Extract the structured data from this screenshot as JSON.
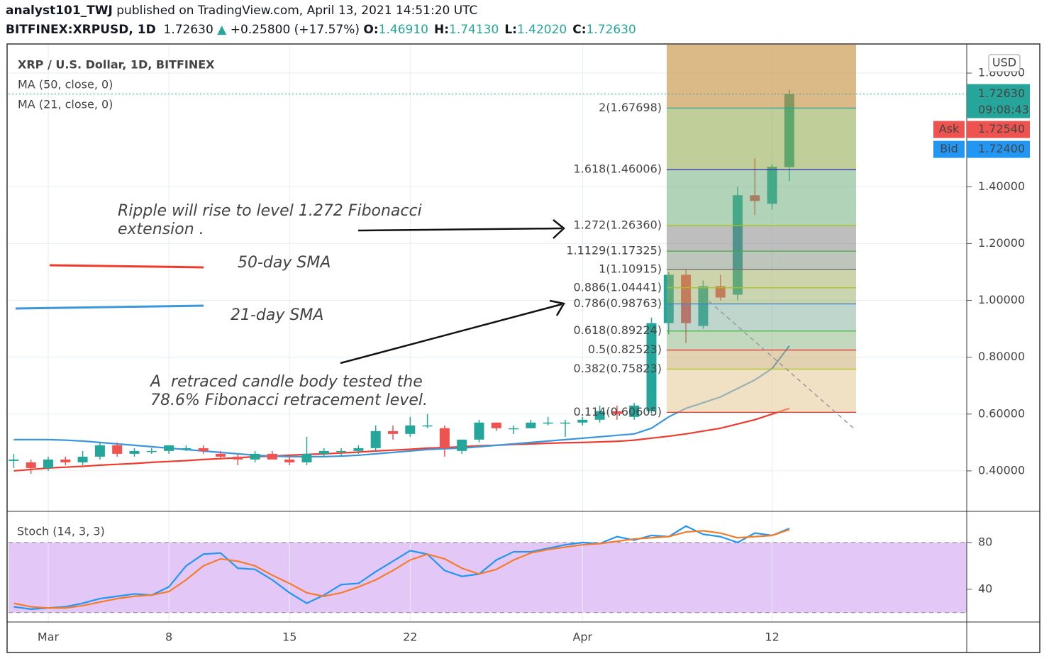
{
  "header": {
    "author": "analyst101_TWJ",
    "published": "published on TradingView.com, April 13, 2021 14:51:20 UTC",
    "symbol": "BITFINEX:XRPUSD, 1D",
    "price": "1.72630",
    "arrow": "▲",
    "change": "+0.25800 (+17.57%)",
    "ohlc": [
      {
        "key": "O:",
        "value": "1.46910"
      },
      {
        "key": "H:",
        "value": "1.74130"
      },
      {
        "key": "L:",
        "value": "1.42020"
      },
      {
        "key": "C:",
        "value": "1.72630"
      }
    ]
  },
  "chart_data": [
    {
      "type": "candlestick",
      "title": "XRP / U.S. Dollar, 1D, BITFINEX",
      "categories": [
        null,
        null,
        "Mar",
        null,
        null,
        null,
        null,
        null,
        null,
        "8",
        null,
        null,
        null,
        null,
        null,
        null,
        "15",
        null,
        null,
        null,
        null,
        null,
        null,
        "22",
        null,
        null,
        null,
        null,
        null,
        null,
        null,
        null,
        null,
        "Apr",
        null,
        null,
        null,
        null,
        null,
        null,
        null,
        null,
        null,
        null,
        "12",
        null
      ],
      "open": [
        0.435,
        0.43,
        0.41,
        0.44,
        0.43,
        0.45,
        0.49,
        0.46,
        0.47,
        0.47,
        0.48,
        0.48,
        0.46,
        0.45,
        0.44,
        0.46,
        0.44,
        0.43,
        0.46,
        0.47,
        0.47,
        0.48,
        0.54,
        0.53,
        0.56,
        0.55,
        0.47,
        0.51,
        0.57,
        0.55,
        0.55,
        0.57,
        0.57,
        0.57,
        0.58,
        0.61,
        0.59,
        0.61,
        0.92,
        1.09,
        0.91,
        1.05,
        1.02,
        1.37,
        1.34,
        1.4691
      ],
      "high": [
        0.46,
        0.44,
        0.45,
        0.45,
        0.47,
        0.5,
        0.5,
        0.48,
        0.48,
        0.49,
        0.49,
        0.49,
        0.47,
        0.46,
        0.47,
        0.47,
        0.45,
        0.52,
        0.48,
        0.48,
        0.49,
        0.56,
        0.56,
        0.59,
        0.6,
        0.56,
        0.51,
        0.58,
        0.57,
        0.56,
        0.58,
        0.59,
        0.58,
        0.59,
        0.63,
        0.63,
        0.64,
        0.94,
        1.1,
        1.11,
        1.07,
        1.09,
        1.4,
        1.5,
        1.48,
        1.7413
      ],
      "low": [
        0.41,
        0.39,
        0.4,
        0.42,
        0.42,
        0.44,
        0.45,
        0.45,
        0.46,
        0.46,
        0.47,
        0.46,
        0.44,
        0.42,
        0.43,
        0.44,
        0.42,
        0.42,
        0.45,
        0.45,
        0.46,
        0.47,
        0.51,
        0.52,
        0.55,
        0.45,
        0.46,
        0.5,
        0.54,
        0.53,
        0.55,
        0.56,
        0.52,
        0.56,
        0.57,
        0.58,
        0.58,
        0.6,
        0.88,
        0.85,
        0.9,
        1.0,
        1.0,
        1.3,
        1.32,
        1.4202
      ],
      "close": [
        0.44,
        0.41,
        0.44,
        0.43,
        0.45,
        0.49,
        0.46,
        0.47,
        0.47,
        0.49,
        0.48,
        0.47,
        0.45,
        0.44,
        0.46,
        0.44,
        0.43,
        0.46,
        0.47,
        0.47,
        0.48,
        0.54,
        0.53,
        0.56,
        0.56,
        0.48,
        0.51,
        0.57,
        0.55,
        0.55,
        0.57,
        0.57,
        0.57,
        0.58,
        0.61,
        0.6,
        0.63,
        0.92,
        1.09,
        0.92,
        1.05,
        1.01,
        1.37,
        1.35,
        1.47,
        1.7263
      ],
      "up_color": "#26a69a",
      "down_color": "#ef5350",
      "series": [
        {
          "name": "MA (50, close, 0)",
          "color": "#ef3b2c",
          "values": [
            0.4,
            0.405,
            0.41,
            0.413,
            0.416,
            0.42,
            0.423,
            0.426,
            0.43,
            0.433,
            0.436,
            0.44,
            0.443,
            0.446,
            0.45,
            0.452,
            0.455,
            0.458,
            0.46,
            0.463,
            0.466,
            0.47,
            0.473,
            0.476,
            0.48,
            0.482,
            0.485,
            0.488,
            0.49,
            0.493,
            0.495,
            0.497,
            0.499,
            0.5,
            0.502,
            0.504,
            0.508,
            0.515,
            0.522,
            0.53,
            0.54,
            0.55,
            0.565,
            0.58,
            0.6,
            0.62
          ]
        },
        {
          "name": "MA (21, close, 0)",
          "color": "#3c96dc",
          "values": [
            0.51,
            0.51,
            0.51,
            0.508,
            0.505,
            0.5,
            0.495,
            0.49,
            0.485,
            0.48,
            0.475,
            0.47,
            0.465,
            0.46,
            0.455,
            0.452,
            0.45,
            0.45,
            0.45,
            0.452,
            0.455,
            0.46,
            0.465,
            0.47,
            0.475,
            0.478,
            0.48,
            0.485,
            0.49,
            0.495,
            0.5,
            0.505,
            0.51,
            0.515,
            0.52,
            0.525,
            0.53,
            0.55,
            0.59,
            0.62,
            0.64,
            0.66,
            0.69,
            0.72,
            0.76,
            0.84
          ]
        }
      ],
      "ylim": [
        0.26,
        1.9
      ],
      "yticks": [
        {
          "value": 0.4,
          "label": "0.40000"
        },
        {
          "value": 0.6,
          "label": "0.60000"
        },
        {
          "value": 0.8,
          "label": "0.80000"
        },
        {
          "value": 1.0,
          "label": "1.00000"
        },
        {
          "value": 1.2,
          "label": "1.20000"
        },
        {
          "value": 1.4,
          "label": "1.40000"
        },
        {
          "value": 1.8,
          "label": "1.80000"
        }
      ],
      "grid": true,
      "currency": "USD",
      "last_price": {
        "value": 1.7263,
        "label": "1.72630",
        "countdown": "09:08:43",
        "color": "#26a69a"
      },
      "ask": {
        "name": "Ask",
        "value": 1.7254,
        "label": "1.72540",
        "color": "#ef5350"
      },
      "bid": {
        "name": "Bid",
        "value": 1.724,
        "label": "1.72400",
        "color": "#2196f3"
      },
      "fib_levels": [
        {
          "label": "2(1.67698)",
          "value": 1.67698,
          "color": "#26a69a"
        },
        {
          "label": "1.618(1.46006)",
          "value": 1.46006,
          "color": "#2a2ab0"
        },
        {
          "label": "1.272(1.26360)",
          "value": 1.2636,
          "color": "#a4c51c"
        },
        {
          "label": "1.1129(1.17325)",
          "value": 1.17325,
          "color": "#3fae3f"
        },
        {
          "label": "1(1.10915)",
          "value": 1.10915,
          "color": "#707070"
        },
        {
          "label": "0.886(1.04441)",
          "value": 1.04441,
          "color": "#a4c51c"
        },
        {
          "label": "0.786(0.98763)",
          "value": 0.98763,
          "color": "#3d7fc0"
        },
        {
          "label": "0.618(0.89224)",
          "value": 0.89224,
          "color": "#3fae3f"
        },
        {
          "label": "0.5(0.82523)",
          "value": 0.82523,
          "color": "#e53935"
        },
        {
          "label": "0.382(0.75823)",
          "value": 0.75823,
          "color": "#a4c51c"
        },
        {
          "label": "0.114(0.60605)",
          "value": 0.60605,
          "color": "#e53935"
        }
      ],
      "annotations": [
        {
          "text": "Ripple will rise to level 1.272 Fibonacci",
          "color": "#111111"
        },
        {
          "text": "extension .",
          "color": "#111111"
        },
        {
          "text": "50-day SMA",
          "color": "#ef3b2c"
        },
        {
          "text": "21-day SMA",
          "color": "#3c96dc"
        },
        {
          "text": "A  retraced candle body tested the",
          "color": "#111111"
        },
        {
          "text": "78.6% Fibonacci retracement level.",
          "color": "#111111"
        }
      ]
    },
    {
      "type": "line",
      "title": "Stoch (14, 3, 3)",
      "series": [
        {
          "color": "#2196f3",
          "values": [
            25,
            23,
            24,
            25,
            28,
            32,
            34,
            36,
            35,
            42,
            60,
            70,
            71,
            58,
            57,
            48,
            37,
            28,
            35,
            44,
            45,
            55,
            64,
            73,
            70,
            56,
            51,
            53,
            65,
            72,
            72,
            75,
            78,
            80,
            79,
            85,
            82,
            86,
            85,
            94,
            87,
            85,
            80,
            88,
            86,
            92
          ]
        },
        {
          "color": "#f57c2a",
          "values": [
            28,
            25,
            24,
            24,
            26,
            29,
            32,
            34,
            35,
            38,
            48,
            60,
            66,
            64,
            60,
            52,
            45,
            37,
            34,
            37,
            42,
            48,
            56,
            65,
            70,
            66,
            58,
            53,
            57,
            65,
            71,
            74,
            76,
            78,
            79,
            81,
            83,
            84,
            85,
            89,
            90,
            88,
            84,
            85,
            86,
            91
          ]
        }
      ],
      "ylim": [
        12,
        106
      ],
      "yticks": [
        40,
        80
      ],
      "levels": [
        20,
        80
      ],
      "band_color": "#e3c8f7"
    }
  ]
}
